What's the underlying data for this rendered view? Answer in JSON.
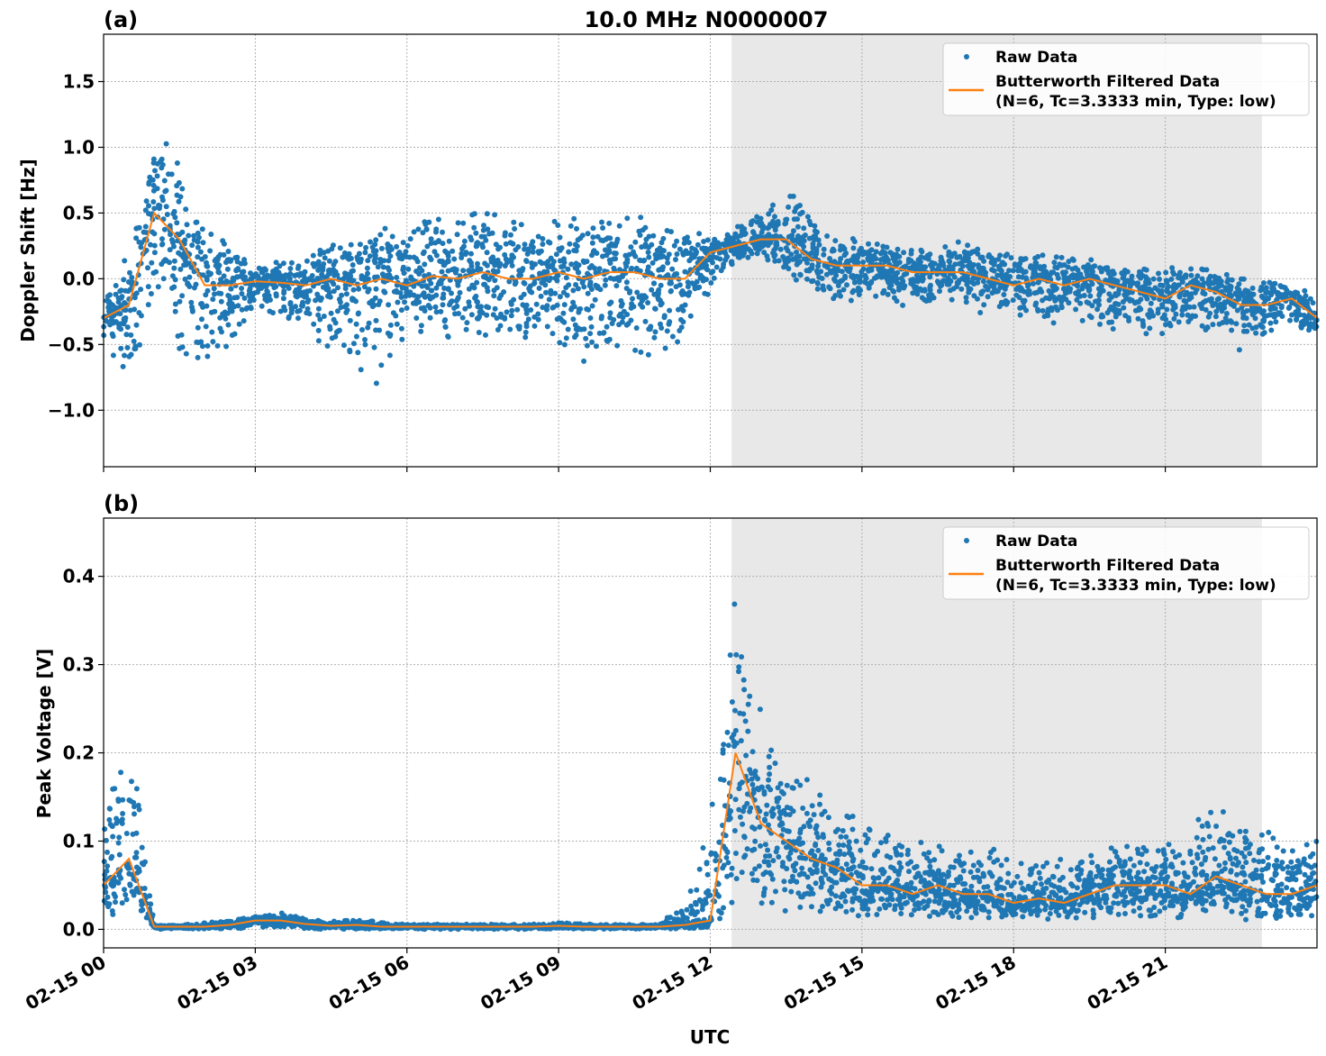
{
  "chart_data": [
    {
      "type": "scatter",
      "panel_label": "(a)",
      "title": "10.0 MHz N0000007",
      "ylabel": "Doppler Shift [Hz]",
      "xlabel": "",
      "xlim_hours": [
        0,
        24
      ],
      "ylim": [
        -1.43,
        1.86
      ],
      "yticks": [
        -1.0,
        -0.5,
        0.0,
        0.5,
        1.0,
        1.5
      ],
      "ytick_labels": [
        "−1.0",
        "−0.5",
        "0.0",
        "0.5",
        "1.0",
        "1.5"
      ],
      "grid": true,
      "shaded_region_hours": [
        12.42,
        22.91
      ],
      "legend": {
        "placement": "top-right",
        "entries": [
          "Raw Data",
          "Butterworth Filtered Data",
          "(N=6, Tc=3.3333 min, Type: low)"
        ]
      },
      "x_hours": [
        0,
        0.5,
        1,
        1.5,
        2,
        2.5,
        3,
        3.5,
        4,
        4.5,
        5,
        5.5,
        6,
        6.5,
        7,
        7.5,
        8,
        8.5,
        9,
        9.5,
        10,
        10.5,
        11,
        11.5,
        12,
        12.5,
        13,
        13.5,
        14,
        14.5,
        15,
        15.5,
        16,
        16.5,
        17,
        17.5,
        18,
        18.5,
        19,
        19.5,
        20,
        20.5,
        21,
        21.5,
        22,
        22.5,
        23,
        23.5,
        24
      ],
      "series": [
        {
          "name": "Butterworth Filtered Data",
          "color": "#ff7f0e",
          "values": [
            -0.3,
            -0.2,
            0.5,
            0.3,
            -0.05,
            -0.05,
            -0.02,
            -0.03,
            -0.05,
            0.0,
            -0.05,
            0.0,
            -0.05,
            0.02,
            0.0,
            0.05,
            0.0,
            0.0,
            0.05,
            0.0,
            0.05,
            0.05,
            0.0,
            0.0,
            0.2,
            0.25,
            0.3,
            0.3,
            0.15,
            0.1,
            0.1,
            0.1,
            0.05,
            0.05,
            0.05,
            0.0,
            -0.05,
            0.0,
            -0.05,
            0.0,
            -0.05,
            -0.1,
            -0.15,
            -0.05,
            -0.1,
            -0.2,
            -0.2,
            -0.15,
            -0.3
          ]
        },
        {
          "name": "Raw Data",
          "color": "#1f77b4",
          "lower": [
            -0.6,
            -0.8,
            -0.3,
            -0.6,
            -0.8,
            -0.5,
            -0.3,
            -0.3,
            -0.4,
            -0.6,
            -0.7,
            -0.9,
            -0.5,
            -0.5,
            -0.5,
            -0.5,
            -0.5,
            -0.5,
            -0.6,
            -0.7,
            -0.6,
            -0.7,
            -0.7,
            -0.6,
            -0.1,
            0.1,
            0.15,
            0.0,
            -0.1,
            -0.2,
            -0.15,
            -0.2,
            -0.25,
            -0.25,
            -0.2,
            -0.3,
            -0.3,
            -0.35,
            -0.35,
            -0.4,
            -0.4,
            -0.45,
            -0.5,
            -0.4,
            -0.45,
            -0.6,
            -0.45,
            -0.4,
            -0.45
          ],
          "upper": [
            -0.1,
            0.3,
            1.2,
            0.9,
            0.5,
            0.3,
            0.1,
            0.15,
            0.2,
            0.3,
            0.35,
            0.4,
            0.4,
            0.5,
            0.55,
            0.6,
            0.5,
            0.45,
            0.5,
            0.5,
            0.55,
            0.55,
            0.5,
            0.4,
            0.35,
            0.4,
            0.55,
            0.7,
            0.5,
            0.35,
            0.3,
            0.3,
            0.25,
            0.25,
            0.3,
            0.3,
            0.2,
            0.2,
            0.2,
            0.15,
            0.1,
            0.1,
            0.1,
            0.1,
            0.1,
            0.05,
            0.0,
            0.0,
            -0.1
          ]
        }
      ]
    },
    {
      "type": "scatter",
      "panel_label": "(b)",
      "title": "",
      "ylabel": "Peak Voltage [V]",
      "xlabel": "UTC",
      "xlim_hours": [
        0,
        24
      ],
      "ylim": [
        -0.021,
        0.466
      ],
      "yticks": [
        0.0,
        0.1,
        0.2,
        0.3,
        0.4
      ],
      "ytick_labels": [
        "0.0",
        "0.1",
        "0.2",
        "0.3",
        "0.4"
      ],
      "xticks_hours": [
        0,
        3,
        6,
        9,
        12,
        15,
        18,
        21
      ],
      "xtick_labels": [
        "02-15 00",
        "02-15 03",
        "02-15 06",
        "02-15 09",
        "02-15 12",
        "02-15 15",
        "02-15 18",
        "02-15 21"
      ],
      "grid": true,
      "shaded_region_hours": [
        12.42,
        22.91
      ],
      "legend": {
        "placement": "top-right",
        "entries": [
          "Raw Data",
          "Butterworth Filtered Data",
          "(N=6, Tc=3.3333 min, Type: low)"
        ]
      },
      "x_hours": [
        0,
        0.5,
        1,
        1.5,
        2,
        2.5,
        3,
        3.5,
        4,
        4.5,
        5,
        5.5,
        6,
        6.5,
        7,
        7.5,
        8,
        8.5,
        9,
        9.5,
        10,
        10.5,
        11,
        11.5,
        12,
        12.5,
        13,
        13.5,
        14,
        14.5,
        15,
        15.5,
        16,
        16.5,
        17,
        17.5,
        18,
        18.5,
        19,
        19.5,
        20,
        20.5,
        21,
        21.5,
        22,
        22.5,
        23,
        23.5,
        24
      ],
      "series": [
        {
          "name": "Butterworth Filtered Data",
          "color": "#ff7f0e",
          "values": [
            0.05,
            0.08,
            0.003,
            0.003,
            0.003,
            0.005,
            0.01,
            0.01,
            0.006,
            0.004,
            0.005,
            0.003,
            0.003,
            0.003,
            0.003,
            0.003,
            0.003,
            0.003,
            0.004,
            0.003,
            0.003,
            0.003,
            0.003,
            0.005,
            0.01,
            0.2,
            0.12,
            0.1,
            0.08,
            0.07,
            0.05,
            0.05,
            0.04,
            0.05,
            0.04,
            0.04,
            0.03,
            0.035,
            0.03,
            0.04,
            0.05,
            0.05,
            0.05,
            0.04,
            0.06,
            0.05,
            0.04,
            0.04,
            0.05
          ]
        },
        {
          "name": "Raw Data",
          "color": "#1f77b4",
          "lower": [
            0.01,
            0.01,
            0.0,
            0.0,
            0.0,
            0.0,
            0.002,
            0.002,
            0.0,
            0.0,
            0.0,
            0.0,
            0.0,
            0.0,
            0.0,
            0.0,
            0.0,
            0.0,
            0.0,
            0.0,
            0.0,
            0.0,
            0.0,
            0.0,
            0.0,
            0.01,
            0.01,
            0.01,
            0.01,
            0.01,
            0.01,
            0.01,
            0.01,
            0.01,
            0.01,
            0.01,
            0.01,
            0.01,
            0.01,
            0.01,
            0.01,
            0.01,
            0.01,
            0.01,
            0.01,
            0.01,
            0.01,
            0.01,
            0.01
          ],
          "upper": [
            0.15,
            0.25,
            0.005,
            0.005,
            0.008,
            0.012,
            0.015,
            0.02,
            0.015,
            0.01,
            0.012,
            0.008,
            0.006,
            0.006,
            0.006,
            0.006,
            0.006,
            0.006,
            0.008,
            0.006,
            0.006,
            0.006,
            0.008,
            0.03,
            0.15,
            0.38,
            0.25,
            0.2,
            0.18,
            0.14,
            0.13,
            0.12,
            0.1,
            0.1,
            0.1,
            0.1,
            0.08,
            0.08,
            0.08,
            0.09,
            0.1,
            0.1,
            0.1,
            0.12,
            0.15,
            0.13,
            0.12,
            0.1,
            0.12
          ]
        }
      ]
    }
  ]
}
